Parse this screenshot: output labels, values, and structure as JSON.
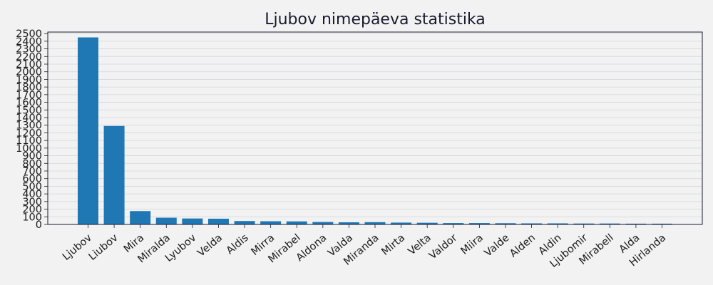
{
  "chart_data": {
    "type": "bar",
    "title": "Ljubov nimepäeva statistika",
    "xlabel": "",
    "ylabel": "",
    "ylim": [
      0,
      2520
    ],
    "yticks": [
      0,
      100,
      200,
      300,
      400,
      500,
      600,
      700,
      800,
      900,
      1000,
      1100,
      1200,
      1300,
      1400,
      1500,
      1600,
      1700,
      1800,
      1900,
      2000,
      2100,
      2200,
      2300,
      2400,
      2500
    ],
    "grid": true,
    "categories": [
      "Ljubov",
      "Liubov",
      "Mira",
      "Miralda",
      "Lyubov",
      "Velda",
      "Aldis",
      "Mirra",
      "Mirabel",
      "Aldona",
      "Valda",
      "Miranda",
      "Mirta",
      "Velta",
      "Valdor",
      "Miira",
      "Valde",
      "Alden",
      "Aldin",
      "Ljubomir",
      "Mirabell",
      "Alda",
      "Hirlanda"
    ],
    "values": [
      2450,
      1290,
      175,
      88,
      78,
      75,
      45,
      42,
      40,
      32,
      28,
      30,
      24,
      22,
      18,
      18,
      16,
      14,
      14,
      12,
      12,
      10,
      10
    ],
    "colors": {
      "bar": "#1f77b4",
      "background": "#f2f2f2",
      "axes_bg": "#f2f2f2",
      "grid": "#d3d6dc",
      "axis": "#1a1a2e"
    }
  }
}
